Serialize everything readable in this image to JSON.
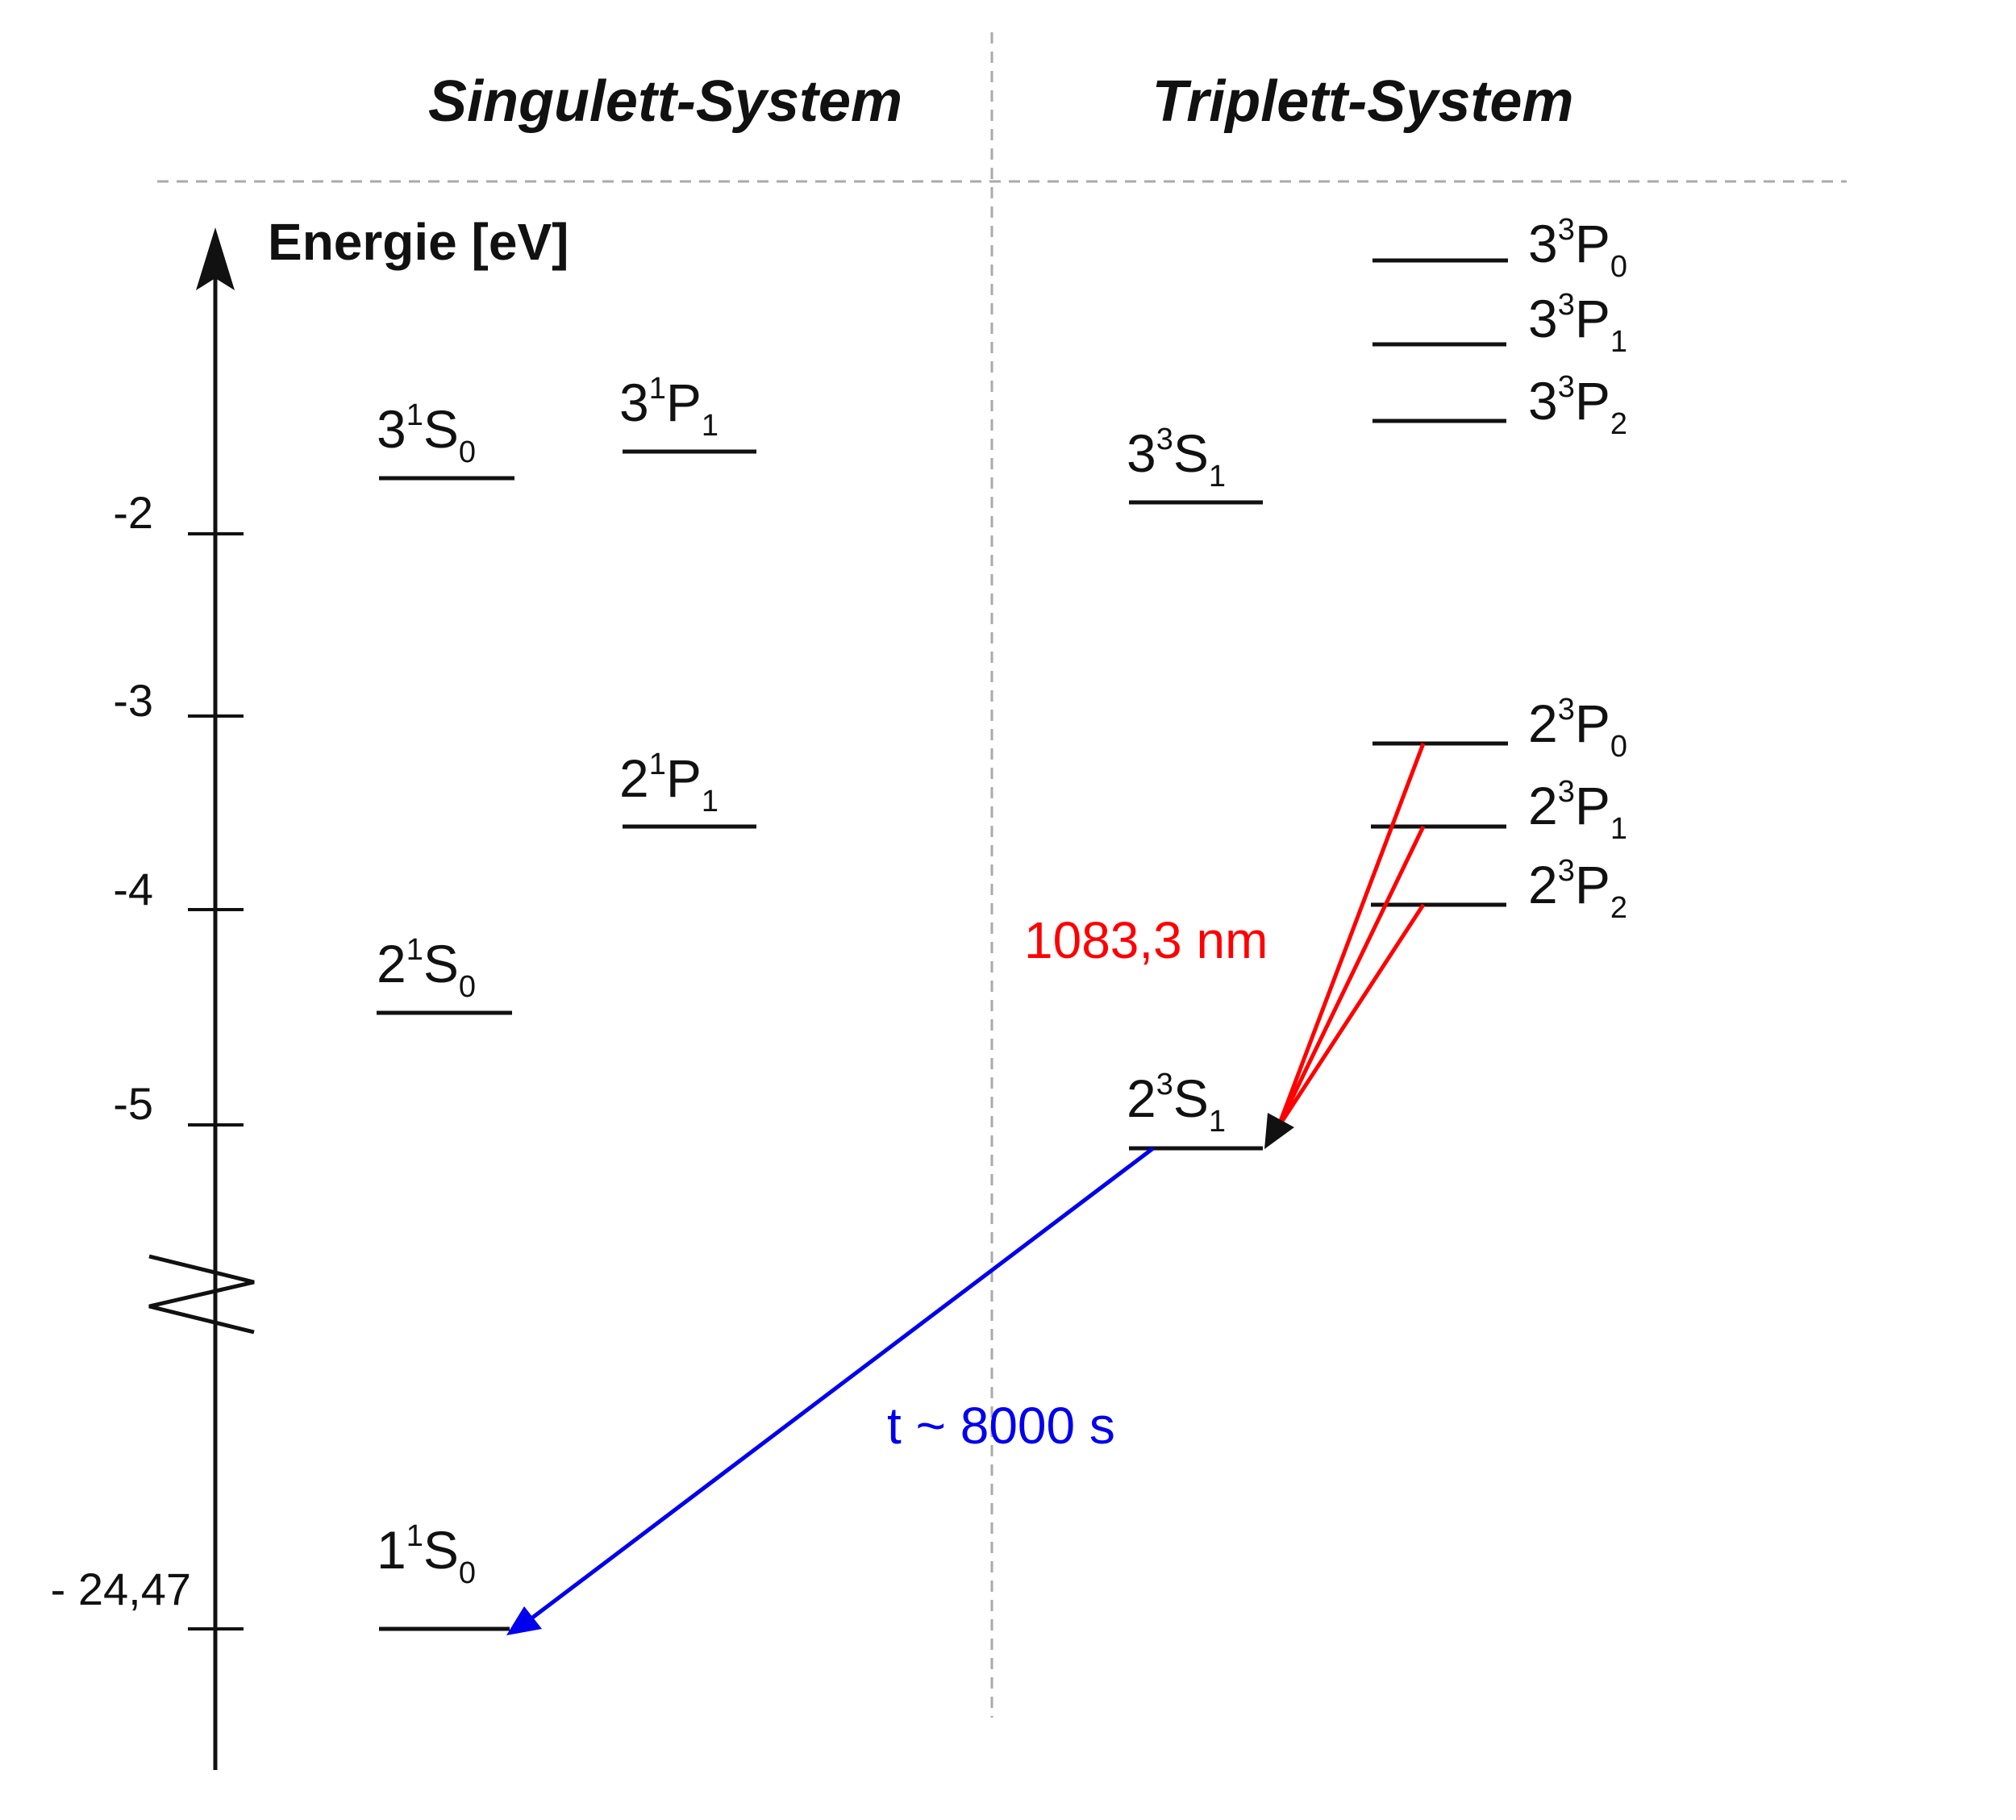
{
  "titles": {
    "singlet": "Singulett-System",
    "triplet": "Triplett-System"
  },
  "axis": {
    "title": "Energie [eV]",
    "ticks": [
      "-2",
      "-3",
      "-4",
      "-5",
      "- 24,47"
    ]
  },
  "states": {
    "s3_1S0": {
      "n": "3",
      "mult": "1",
      "L": "S",
      "J": "0"
    },
    "s3_1P1": {
      "n": "3",
      "mult": "1",
      "L": "P",
      "J": "1"
    },
    "s2_1P1": {
      "n": "2",
      "mult": "1",
      "L": "P",
      "J": "1"
    },
    "s2_1S0": {
      "n": "2",
      "mult": "1",
      "L": "S",
      "J": "0"
    },
    "s1_1S0": {
      "n": "1",
      "mult": "1",
      "L": "S",
      "J": "0"
    },
    "t3_3P0": {
      "n": "3",
      "mult": "3",
      "L": "P",
      "J": "0"
    },
    "t3_3P1": {
      "n": "3",
      "mult": "3",
      "L": "P",
      "J": "1"
    },
    "t3_3P2": {
      "n": "3",
      "mult": "3",
      "L": "P",
      "J": "2"
    },
    "t3_3S1": {
      "n": "3",
      "mult": "3",
      "L": "S",
      "J": "1"
    },
    "t2_3P0": {
      "n": "2",
      "mult": "3",
      "L": "P",
      "J": "0"
    },
    "t2_3P1": {
      "n": "2",
      "mult": "3",
      "L": "P",
      "J": "1"
    },
    "t2_3P2": {
      "n": "2",
      "mult": "3",
      "L": "P",
      "J": "2"
    },
    "t2_3S1": {
      "n": "2",
      "mult": "3",
      "L": "S",
      "J": "1"
    }
  },
  "transitions": {
    "red": {
      "label": "1083,3 nm",
      "color": "#ff0000"
    },
    "blue": {
      "label": "t ~ 8000 s",
      "color": "#0000ee"
    }
  }
}
